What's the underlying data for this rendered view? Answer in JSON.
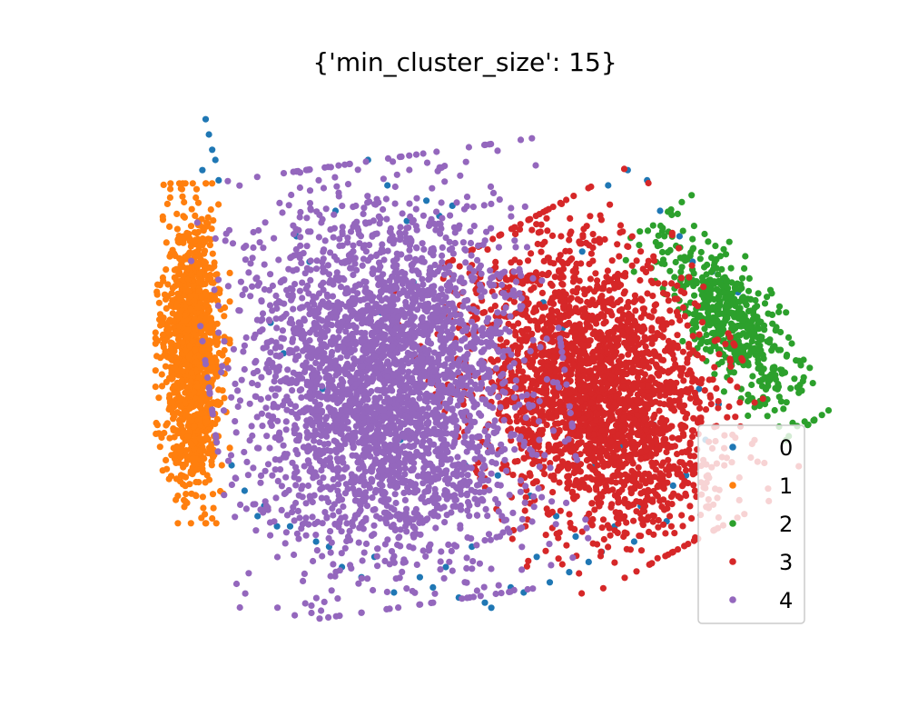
{
  "chart_data": {
    "type": "scatter",
    "title": "{'min_cluster_size': 15}",
    "xlabel": "",
    "ylabel": "",
    "axes_visible": false,
    "grid": false,
    "xlim": [
      0,
      100
    ],
    "ylim": [
      0,
      100
    ],
    "legend": {
      "placement": "lower-right",
      "entries": [
        "0",
        "1",
        "2",
        "3",
        "4"
      ]
    },
    "series": [
      {
        "name": "0",
        "color": "#1f77b4",
        "role": "noise",
        "x": [
          10,
          10.5,
          11,
          11.5,
          9.5,
          12,
          24,
          26,
          30,
          35,
          38,
          41,
          44,
          46,
          48,
          52,
          56,
          58,
          62,
          65,
          68,
          72,
          75,
          78,
          80,
          83,
          85,
          88,
          90,
          92,
          20,
          22,
          28,
          33,
          40,
          50,
          55,
          60,
          64,
          70,
          74,
          79,
          86,
          16,
          18,
          21,
          27,
          31,
          36,
          43,
          47,
          51,
          57,
          61,
          67,
          73,
          77,
          82,
          87,
          91,
          14,
          19,
          23,
          29,
          34,
          39,
          45,
          49,
          53,
          59,
          63,
          66,
          69,
          71,
          76,
          81,
          84,
          89,
          25,
          37,
          42,
          54
        ],
        "y": [
          98,
          95,
          92,
          90,
          88,
          86,
          75,
          70,
          80,
          90,
          85,
          78,
          82,
          79,
          81,
          65,
          64,
          60,
          62,
          57,
          72,
          85,
          88,
          86,
          80,
          75,
          70,
          68,
          66,
          64,
          58,
          52,
          45,
          40,
          35,
          30,
          28,
          24,
          20,
          30,
          34,
          38,
          45,
          25,
          20,
          18,
          15,
          10,
          12,
          8,
          10,
          14,
          6,
          12,
          16,
          18,
          22,
          26,
          35,
          50,
          30,
          22,
          18,
          14,
          8,
          5,
          6,
          4,
          3,
          5,
          7,
          9,
          11,
          13,
          15,
          19,
          28,
          42,
          55,
          60,
          66,
          2
        ]
      }
    ],
    "clusters": [
      {
        "name": "1",
        "color": "#ff7f0e",
        "center": [
          8,
          52
        ],
        "spread": [
          2.2,
          16
        ],
        "rotation": 0,
        "count": 1200
      },
      {
        "name": "2",
        "color": "#2ca02c",
        "center": [
          91,
          58
        ],
        "spread": [
          3.0,
          12
        ],
        "rotation": -35,
        "count": 550
      },
      {
        "name": "3",
        "color": "#d62728",
        "center": [
          70,
          45
        ],
        "spread": [
          8.5,
          17
        ],
        "rotation": -28,
        "count": 2600
      },
      {
        "name": "4",
        "color": "#9467bd",
        "center": [
          38,
          46
        ],
        "spread": [
          10.5,
          21
        ],
        "rotation": -8,
        "count": 3200
      }
    ]
  }
}
